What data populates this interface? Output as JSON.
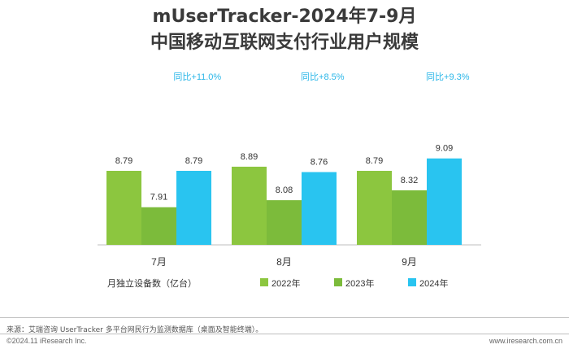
{
  "title_line1": "mUserTracker-2024年7-9月",
  "title_line2": "中国移动互联网支付行业用户规模",
  "colors": {
    "series_2022": "#8cc63f",
    "series_2023": "#7cbb3b",
    "series_2024": "#29c4f0",
    "growth_text": "#29b6e8",
    "axis": "#bfbfbf"
  },
  "chart_data": {
    "type": "bar",
    "categories": [
      "7月",
      "8月",
      "9月"
    ],
    "series": [
      {
        "name": "2022年",
        "values": [
          8.79,
          8.89,
          8.79
        ]
      },
      {
        "name": "2023年",
        "values": [
          7.91,
          8.08,
          8.32
        ]
      },
      {
        "name": "2024年",
        "values": [
          8.79,
          8.76,
          9.09
        ]
      }
    ],
    "value_labels": [
      [
        "8.79",
        "7.91",
        "8.79"
      ],
      [
        "8.89",
        "8.08",
        "8.76"
      ],
      [
        "8.79",
        "8.32",
        "9.09"
      ]
    ],
    "growth_labels": [
      "同比+11.0%",
      "同比+8.5%",
      "同比+9.3%"
    ],
    "ylabel": "月独立设备数（亿台）",
    "legend_position": "bottom",
    "ylim": [
      0,
      10
    ],
    "grid": false
  },
  "footer": {
    "source": "来源：艾瑞咨询 UserTracker 多平台网民行为监测数据库（桌面及智能终端）。",
    "copyright": "©2024.11 iResearch Inc.",
    "website": "www.iresearch.com.cn"
  }
}
